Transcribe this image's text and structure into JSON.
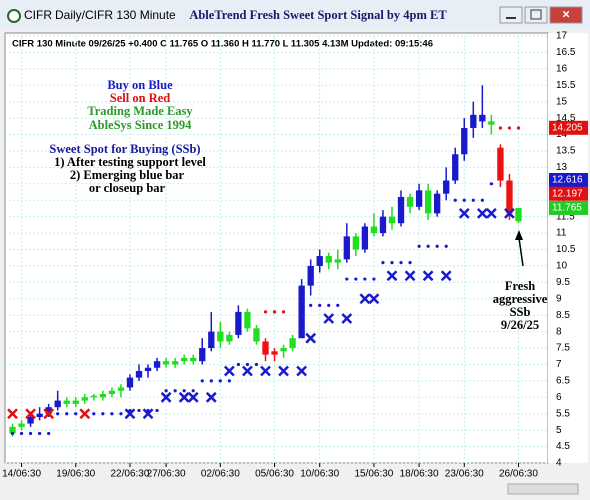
{
  "chart_data": {
    "type": "candlestick",
    "window": {
      "tab": "CIFR",
      "subtitle": "Daily/CIFR 130 Minute"
    },
    "title": "AbleTrend Fresh Sweet Sport Signal by 4pm ET",
    "info_line": "CIFR 130 Minute 09/26/25 +0.400 C 11.765 O 11.360 H 11.770 L 11.305 4.13M Updated: 09:15:46",
    "annotations": [
      {
        "text": "Buy on Blue",
        "color": "#1a1acc"
      },
      {
        "text": "Sell on Red",
        "color": "#e01010"
      },
      {
        "text": "Trading Made Easy",
        "color": "#2a9a2a"
      },
      {
        "text": "AbleSys Since 1994",
        "color": "#2a9a2a"
      },
      {
        "text": "Sweet Spot for Buying (SSb)",
        "color": "#1a1a99"
      },
      {
        "text": "1) After testing support level",
        "color": "#000000"
      },
      {
        "text": "2) Emerging blue bar",
        "color": "#000000"
      },
      {
        "text": "or closeup bar",
        "color": "#000000"
      }
    ],
    "signal_note": [
      "Fresh",
      "aggressive",
      "SSb",
      "9/26/25"
    ],
    "categories": [
      null,
      "14/06:30",
      null,
      null,
      null,
      null,
      null,
      "19/06:30",
      null,
      null,
      null,
      null,
      null,
      "22/06:30",
      null,
      null,
      null,
      "27/06:30",
      null,
      null,
      null,
      null,
      null,
      "02/06:30",
      null,
      null,
      null,
      null,
      null,
      "05/06:30",
      null,
      null,
      null,
      null,
      "10/06:30",
      null,
      null,
      null,
      null,
      null,
      "15/06:30",
      null,
      null,
      null,
      null,
      "18/06:30",
      null,
      null,
      null,
      null,
      "23/06:30",
      null,
      null,
      null,
      null,
      null,
      "26/06:30"
    ],
    "ohlc": [
      [
        4.9,
        5.2,
        4.8,
        5.1
      ],
      [
        5.1,
        5.3,
        5.0,
        5.2
      ],
      [
        5.2,
        5.5,
        5.1,
        5.4
      ],
      [
        5.4,
        5.7,
        5.3,
        5.5
      ],
      [
        5.5,
        5.8,
        5.4,
        5.7
      ],
      [
        5.7,
        6.2,
        5.6,
        5.9
      ],
      [
        5.9,
        6.0,
        5.7,
        5.8
      ],
      [
        5.8,
        6.0,
        5.7,
        5.9
      ],
      [
        5.9,
        6.1,
        5.8,
        6.0
      ],
      [
        6.0,
        6.1,
        5.9,
        6.05
      ],
      [
        6.0,
        6.2,
        5.9,
        6.1
      ],
      [
        6.1,
        6.3,
        6.0,
        6.2
      ],
      [
        6.2,
        6.4,
        6.0,
        6.3
      ],
      [
        6.3,
        6.7,
        6.2,
        6.6
      ],
      [
        6.6,
        7.0,
        6.5,
        6.8
      ],
      [
        6.8,
        7.0,
        6.6,
        6.9
      ],
      [
        6.9,
        7.2,
        6.8,
        7.1
      ],
      [
        7.1,
        7.2,
        6.9,
        7.0
      ],
      [
        7.0,
        7.2,
        6.9,
        7.1
      ],
      [
        7.1,
        7.3,
        7.0,
        7.2
      ],
      [
        7.2,
        7.3,
        7.0,
        7.1
      ],
      [
        7.1,
        7.8,
        7.0,
        7.5
      ],
      [
        7.5,
        8.6,
        7.4,
        8.0
      ],
      [
        8.0,
        8.3,
        7.5,
        7.7
      ],
      [
        7.7,
        8.0,
        7.6,
        7.9
      ],
      [
        7.9,
        8.8,
        7.8,
        8.6
      ],
      [
        8.6,
        8.7,
        8.0,
        8.1
      ],
      [
        8.1,
        8.2,
        7.6,
        7.7
      ],
      [
        7.7,
        7.8,
        7.1,
        7.3
      ],
      [
        7.3,
        7.5,
        7.1,
        7.4
      ],
      [
        7.4,
        7.6,
        7.2,
        7.5
      ],
      [
        7.5,
        7.9,
        7.4,
        7.8
      ],
      [
        7.8,
        9.6,
        7.8,
        9.4
      ],
      [
        9.4,
        10.2,
        9.1,
        10.0
      ],
      [
        10.0,
        10.5,
        9.8,
        10.3
      ],
      [
        10.3,
        10.4,
        9.9,
        10.1
      ],
      [
        10.1,
        10.5,
        9.9,
        10.2
      ],
      [
        10.2,
        11.3,
        10.1,
        10.9
      ],
      [
        10.9,
        11.0,
        10.3,
        10.5
      ],
      [
        10.5,
        11.3,
        10.4,
        11.2
      ],
      [
        11.2,
        11.6,
        10.9,
        11.0
      ],
      [
        11.0,
        11.7,
        10.9,
        11.5
      ],
      [
        11.5,
        11.8,
        11.1,
        11.3
      ],
      [
        11.3,
        12.3,
        11.2,
        12.1
      ],
      [
        12.1,
        12.2,
        11.6,
        11.8
      ],
      [
        11.8,
        12.5,
        11.7,
        12.3
      ],
      [
        12.3,
        12.5,
        11.4,
        11.6
      ],
      [
        11.6,
        12.3,
        11.5,
        12.2
      ],
      [
        12.2,
        13.0,
        12.0,
        12.6
      ],
      [
        12.6,
        13.6,
        12.5,
        13.4
      ],
      [
        13.4,
        14.5,
        13.2,
        14.2
      ],
      [
        14.2,
        15.0,
        13.9,
        14.6
      ],
      [
        14.6,
        15.5,
        14.2,
        14.4
      ],
      [
        14.4,
        14.6,
        14.0,
        14.3
      ],
      [
        13.6,
        13.7,
        12.4,
        12.6
      ],
      [
        12.6,
        12.8,
        11.4,
        11.6
      ],
      [
        11.36,
        11.77,
        11.305,
        11.765
      ]
    ],
    "bar_colors": [
      "#22dd22",
      "#22dd22",
      "#1a1acc",
      "#1a1acc",
      "#1a1acc",
      "#1a1acc",
      "#22dd22",
      "#22dd22",
      "#22dd22",
      "#22dd22",
      "#22dd22",
      "#22dd22",
      "#22dd22",
      "#1a1acc",
      "#1a1acc",
      "#1a1acc",
      "#1a1acc",
      "#22dd22",
      "#22dd22",
      "#22dd22",
      "#22dd22",
      "#1a1acc",
      "#1a1acc",
      "#22dd22",
      "#22dd22",
      "#1a1acc",
      "#22dd22",
      "#22dd22",
      "#ee1111",
      "#ee1111",
      "#22dd22",
      "#22dd22",
      "#1a1acc",
      "#1a1acc",
      "#1a1acc",
      "#22dd22",
      "#22dd22",
      "#1a1acc",
      "#22dd22",
      "#1a1acc",
      "#22dd22",
      "#1a1acc",
      "#22dd22",
      "#1a1acc",
      "#22dd22",
      "#1a1acc",
      "#22dd22",
      "#1a1acc",
      "#1a1acc",
      "#1a1acc",
      "#1a1acc",
      "#1a1acc",
      "#1a1acc",
      "#22dd22",
      "#ee1111",
      "#ee1111",
      "#22dd22"
    ],
    "support_stop": {
      "color": "#1a1acc",
      "values": [
        4.9,
        4.9,
        4.9,
        4.9,
        4.9,
        5.5,
        5.5,
        5.5,
        5.5,
        5.5,
        5.5,
        5.5,
        5.5,
        5.6,
        5.6,
        5.6,
        5.6,
        6.2,
        6.2,
        6.2,
        6.2,
        6.5,
        6.5,
        6.5,
        6.5,
        7.0,
        7.0,
        7.0,
        null,
        null,
        null,
        null,
        8.8,
        8.8,
        8.8,
        8.8,
        8.8,
        9.6,
        9.6,
        9.6,
        9.6,
        10.1,
        10.1,
        10.1,
        10.1,
        10.6,
        10.6,
        10.6,
        10.6,
        12.0,
        12.0,
        12.0,
        12.0,
        12.5,
        null,
        null,
        null
      ]
    },
    "resistance_stop": {
      "color": "#e01010",
      "values": [
        null,
        null,
        null,
        null,
        null,
        null,
        null,
        null,
        null,
        null,
        null,
        null,
        null,
        null,
        null,
        null,
        null,
        null,
        null,
        null,
        null,
        null,
        null,
        null,
        null,
        null,
        null,
        null,
        8.6,
        8.6,
        8.6,
        null,
        null,
        null,
        null,
        null,
        null,
        null,
        null,
        null,
        null,
        null,
        null,
        null,
        null,
        null,
        null,
        null,
        null,
        null,
        null,
        null,
        null,
        null,
        14.2,
        14.2,
        14.2
      ]
    },
    "sell_signal": {
      "color": "#e01010",
      "values": [
        5.5,
        null,
        5.5,
        null,
        5.5,
        null,
        null,
        null,
        5.5,
        null,
        null,
        null,
        null,
        null,
        null,
        null,
        null,
        null,
        null,
        null,
        null,
        null,
        null,
        null,
        null,
        null,
        null,
        null,
        null,
        null,
        null,
        null,
        null,
        null,
        null,
        null,
        null,
        null,
        null,
        null,
        null,
        null,
        null,
        null,
        null,
        null,
        null,
        null,
        null,
        null,
        null,
        null,
        null,
        null,
        null,
        null,
        null
      ]
    },
    "buy_signal": {
      "color": "#1a1acc",
      "values": [
        null,
        null,
        null,
        null,
        null,
        null,
        null,
        null,
        null,
        null,
        null,
        null,
        null,
        5.5,
        null,
        5.5,
        null,
        6.0,
        null,
        6.0,
        6.0,
        null,
        6.0,
        null,
        6.8,
        null,
        6.8,
        null,
        6.8,
        null,
        6.8,
        null,
        6.8,
        7.8,
        null,
        8.4,
        null,
        8.4,
        null,
        9.0,
        9.0,
        null,
        9.7,
        null,
        9.7,
        null,
        9.7,
        null,
        9.7,
        null,
        11.6,
        null,
        11.6,
        11.6,
        null,
        11.6,
        null
      ]
    },
    "price_labels": [
      {
        "value": 14.205,
        "color": "#e01010"
      },
      {
        "value": 12.616,
        "color": "#1a1acc"
      },
      {
        "value": 12.197,
        "color": "#e01010"
      },
      {
        "value": 11.765,
        "color": "#22cc22"
      }
    ],
    "ylim": [
      4,
      17
    ],
    "yticks": [
      4,
      4.5,
      5,
      5.5,
      6,
      6.5,
      7,
      7.5,
      8,
      8.5,
      9,
      9.5,
      10,
      10.5,
      11,
      11.5,
      12,
      12.5,
      13,
      13.5,
      14,
      14.5,
      15,
      15.5,
      16,
      16.5,
      17
    ],
    "grid": true
  }
}
